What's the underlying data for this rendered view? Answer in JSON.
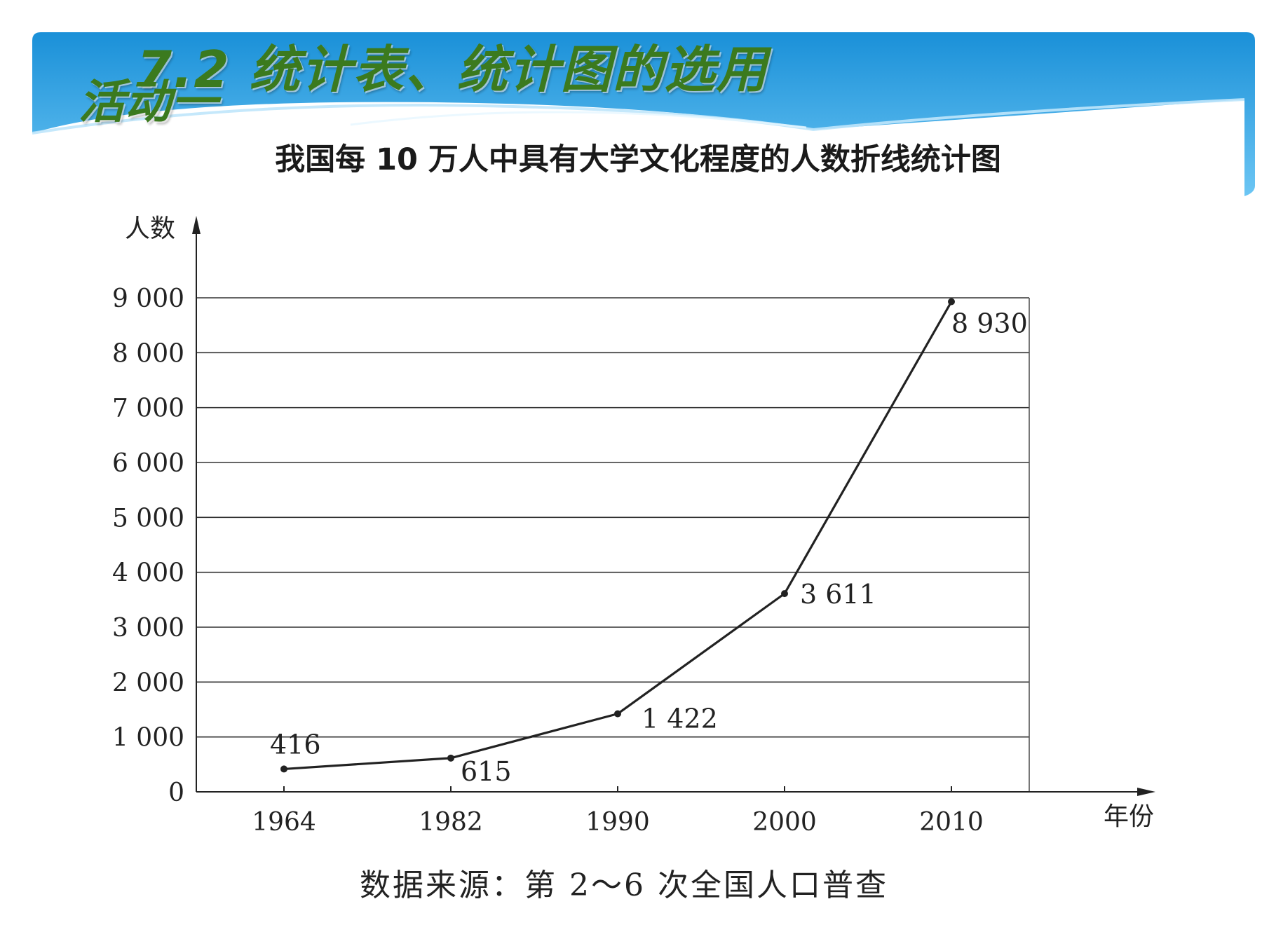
{
  "slide": {
    "title": "7.2 统计表、统计图的选用",
    "subtitle": "活动一",
    "banner_color": "#2a9fe0",
    "title_color": "#3b7a1e"
  },
  "chart_data": {
    "type": "line",
    "title": "我国每 10 万人中具有大学文化程度的人数折线统计图",
    "xlabel": "年份",
    "ylabel": "人数",
    "categories": [
      "1964",
      "1982",
      "1990",
      "2000",
      "2010"
    ],
    "series": [
      {
        "values": [
          416,
          615,
          1422,
          3611,
          8930
        ]
      }
    ],
    "data_labels": [
      "416",
      "615",
      "1 422",
      "3 611",
      "8 930"
    ],
    "ylim": [
      0,
      9000
    ],
    "yticks": [
      0,
      1000,
      2000,
      3000,
      4000,
      5000,
      6000,
      7000,
      8000,
      9000
    ],
    "ytick_labels": [
      "0",
      "1 000",
      "2 000",
      "3 000",
      "4 000",
      "5 000",
      "6 000",
      "7 000",
      "8 000",
      "9 000"
    ],
    "grid": true,
    "source": "数据来源：第 2～6 次全国人口普查",
    "line_color": "#222222"
  }
}
